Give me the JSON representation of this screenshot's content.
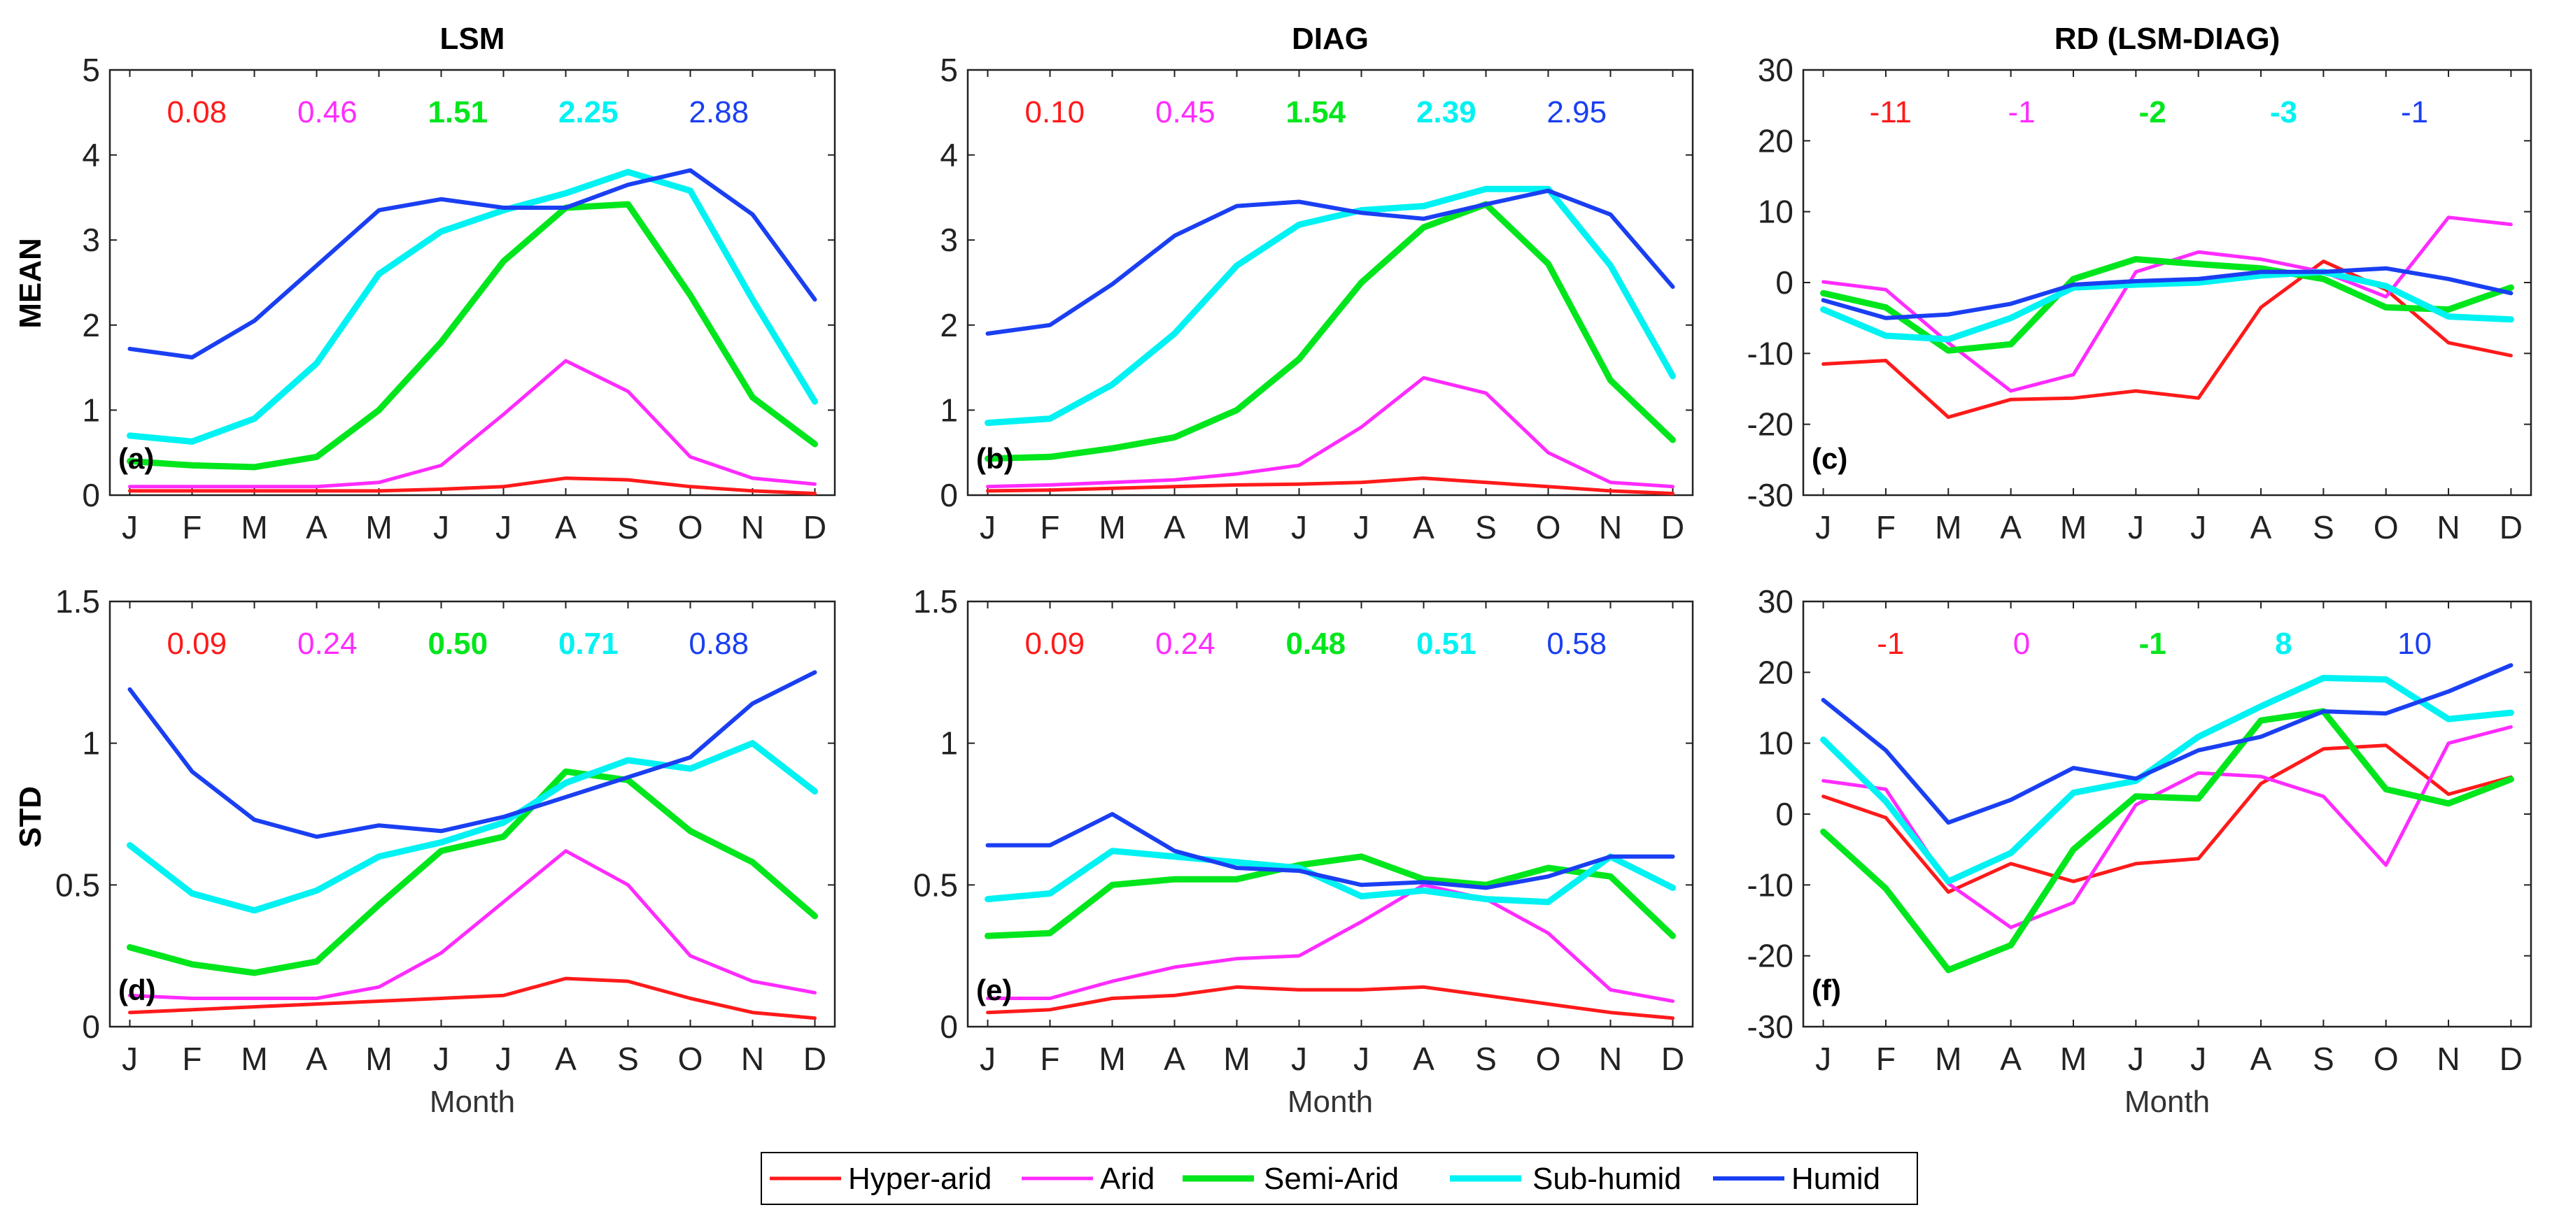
{
  "legend": [
    {
      "name": "Hyper-arid",
      "color": "#ff1a1a",
      "width": 5
    },
    {
      "name": "Arid",
      "color": "#ff2bff",
      "width": 5
    },
    {
      "name": "Semi-Arid",
      "color": "#00e61c",
      "width": 9
    },
    {
      "name": "Sub-humid",
      "color": "#00f2f2",
      "width": 9
    },
    {
      "name": "Humid",
      "color": "#1a3ff2",
      "width": 6
    }
  ],
  "row_labels": [
    "MEAN",
    "STD"
  ],
  "xlabel": "Month",
  "chart_data": [
    {
      "type": "line",
      "id": "a",
      "title": "LSM",
      "panel_label": "(a)",
      "categories": [
        "J",
        "F",
        "M",
        "A",
        "M",
        "J",
        "J",
        "A",
        "S",
        "O",
        "N",
        "D"
      ],
      "ylim": [
        0,
        5
      ],
      "yticks": [
        "0",
        "1",
        "2",
        "3",
        "4",
        "5"
      ],
      "ytick_values": [
        0,
        1,
        2,
        3,
        4,
        5
      ],
      "xlabel": "",
      "summary": [
        "0.08",
        "0.46",
        "1.51",
        "2.25",
        "2.88"
      ],
      "series": [
        {
          "name": "Hyper-arid",
          "values": [
            0.05,
            0.05,
            0.05,
            0.05,
            0.05,
            0.07,
            0.1,
            0.2,
            0.18,
            0.1,
            0.05,
            0.02
          ]
        },
        {
          "name": "Arid",
          "values": [
            0.1,
            0.1,
            0.1,
            0.1,
            0.15,
            0.35,
            0.95,
            1.58,
            1.22,
            0.45,
            0.2,
            0.13
          ]
        },
        {
          "name": "Semi-Arid",
          "values": [
            0.4,
            0.35,
            0.33,
            0.45,
            1.0,
            1.8,
            2.75,
            3.38,
            3.42,
            2.35,
            1.15,
            0.6
          ]
        },
        {
          "name": "Sub-humid",
          "values": [
            0.7,
            0.63,
            0.9,
            1.55,
            2.6,
            3.1,
            3.35,
            3.55,
            3.8,
            3.58,
            2.3,
            1.1
          ]
        },
        {
          "name": "Humid",
          "values": [
            1.72,
            1.62,
            2.05,
            2.7,
            3.35,
            3.48,
            3.38,
            3.38,
            3.65,
            3.82,
            3.3,
            2.3
          ]
        }
      ]
    },
    {
      "type": "line",
      "id": "b",
      "title": "DIAG",
      "panel_label": "(b)",
      "categories": [
        "J",
        "F",
        "M",
        "A",
        "M",
        "J",
        "J",
        "A",
        "S",
        "O",
        "N",
        "D"
      ],
      "ylim": [
        0,
        5
      ],
      "yticks": [
        "0",
        "1",
        "2",
        "3",
        "4",
        "5"
      ],
      "ytick_values": [
        0,
        1,
        2,
        3,
        4,
        5
      ],
      "xlabel": "",
      "summary": [
        "0.10",
        "0.45",
        "1.54",
        "2.39",
        "2.95"
      ],
      "series": [
        {
          "name": "Hyper-arid",
          "values": [
            0.05,
            0.06,
            0.08,
            0.1,
            0.12,
            0.13,
            0.15,
            0.2,
            0.15,
            0.1,
            0.05,
            0.02
          ]
        },
        {
          "name": "Arid",
          "values": [
            0.1,
            0.12,
            0.15,
            0.18,
            0.25,
            0.35,
            0.8,
            1.38,
            1.2,
            0.5,
            0.15,
            0.1
          ]
        },
        {
          "name": "Semi-Arid",
          "values": [
            0.43,
            0.45,
            0.55,
            0.68,
            1.0,
            1.6,
            2.5,
            3.15,
            3.42,
            2.72,
            1.35,
            0.65
          ]
        },
        {
          "name": "Sub-humid",
          "values": [
            0.85,
            0.9,
            1.3,
            1.9,
            2.7,
            3.18,
            3.35,
            3.4,
            3.6,
            3.6,
            2.7,
            1.4
          ]
        },
        {
          "name": "Humid",
          "values": [
            1.9,
            2.0,
            2.48,
            3.05,
            3.4,
            3.45,
            3.32,
            3.25,
            3.42,
            3.58,
            3.3,
            2.45
          ]
        }
      ]
    },
    {
      "type": "line",
      "id": "c",
      "title": "RD (LSM-DIAG)",
      "panel_label": "(c)",
      "categories": [
        "J",
        "F",
        "M",
        "A",
        "M",
        "J",
        "J",
        "A",
        "S",
        "O",
        "N",
        "D"
      ],
      "ylim": [
        -30,
        30
      ],
      "yticks": [
        "-30",
        "-20",
        "-10",
        "0",
        "10",
        "20",
        "30"
      ],
      "ytick_values": [
        -30,
        -20,
        -10,
        0,
        10,
        20,
        30
      ],
      "xlabel": "",
      "summary": [
        "-11",
        "-1",
        "-2",
        "-3",
        "-1"
      ],
      "series": [
        {
          "name": "Hyper-arid",
          "values": [
            -11.5,
            -11,
            -19,
            -16.5,
            -16.3,
            -15.3,
            -16.3,
            -3.5,
            3,
            -1,
            -8.5,
            -10.3
          ]
        },
        {
          "name": "Arid",
          "values": [
            0.1,
            -1,
            -8.5,
            -15.3,
            -13,
            1.5,
            4.3,
            3.3,
            1.5,
            -2,
            9.2,
            8.2
          ]
        },
        {
          "name": "Semi-Arid",
          "values": [
            -1.5,
            -3.5,
            -9.6,
            -8.7,
            0.5,
            3.3,
            2.6,
            2,
            0.5,
            -3.5,
            -3.8,
            -0.7
          ]
        },
        {
          "name": "Sub-humid",
          "values": [
            -3.8,
            -7.5,
            -8,
            -5,
            -0.7,
            -0.3,
            0,
            1,
            1.5,
            -0.5,
            -4.8,
            -5.2
          ]
        },
        {
          "name": "Humid",
          "values": [
            -2.5,
            -5,
            -4.5,
            -3,
            -0.3,
            0.2,
            0.5,
            1.5,
            1.5,
            2,
            0.5,
            -1.5
          ]
        }
      ]
    },
    {
      "type": "line",
      "id": "d",
      "title": "",
      "panel_label": "(d)",
      "categories": [
        "J",
        "F",
        "M",
        "A",
        "M",
        "J",
        "J",
        "A",
        "S",
        "O",
        "N",
        "D"
      ],
      "ylim": [
        0,
        1.5
      ],
      "yticks": [
        "0",
        "0.5",
        "1",
        "1.5"
      ],
      "ytick_values": [
        0,
        0.5,
        1,
        1.5
      ],
      "xlabel": "Month",
      "summary": [
        "0.09",
        "0.24",
        "0.50",
        "0.71",
        "0.88"
      ],
      "series": [
        {
          "name": "Hyper-arid",
          "values": [
            0.05,
            0.06,
            0.07,
            0.08,
            0.09,
            0.1,
            0.11,
            0.17,
            0.16,
            0.1,
            0.05,
            0.03
          ]
        },
        {
          "name": "Arid",
          "values": [
            0.11,
            0.1,
            0.1,
            0.1,
            0.14,
            0.26,
            0.44,
            0.62,
            0.5,
            0.25,
            0.16,
            0.12
          ]
        },
        {
          "name": "Semi-Arid",
          "values": [
            0.28,
            0.22,
            0.19,
            0.23,
            0.43,
            0.62,
            0.67,
            0.9,
            0.87,
            0.69,
            0.58,
            0.39
          ]
        },
        {
          "name": "Sub-humid",
          "values": [
            0.64,
            0.47,
            0.41,
            0.48,
            0.6,
            0.65,
            0.72,
            0.86,
            0.94,
            0.91,
            1.0,
            0.83
          ]
        },
        {
          "name": "Humid",
          "values": [
            1.19,
            0.9,
            0.73,
            0.67,
            0.71,
            0.69,
            0.74,
            0.81,
            0.88,
            0.95,
            1.14,
            1.25
          ]
        }
      ]
    },
    {
      "type": "line",
      "id": "e",
      "title": "",
      "panel_label": "(e)",
      "categories": [
        "J",
        "F",
        "M",
        "A",
        "M",
        "J",
        "J",
        "A",
        "S",
        "O",
        "N",
        "D"
      ],
      "ylim": [
        0,
        1.5
      ],
      "yticks": [
        "0",
        "0.5",
        "1",
        "1.5"
      ],
      "ytick_values": [
        0,
        0.5,
        1,
        1.5
      ],
      "xlabel": "Month",
      "summary": [
        "0.09",
        "0.24",
        "0.48",
        "0.51",
        "0.58"
      ],
      "series": [
        {
          "name": "Hyper-arid",
          "values": [
            0.05,
            0.06,
            0.1,
            0.11,
            0.14,
            0.13,
            0.13,
            0.14,
            0.11,
            0.08,
            0.05,
            0.03
          ]
        },
        {
          "name": "Arid",
          "values": [
            0.1,
            0.1,
            0.16,
            0.21,
            0.24,
            0.25,
            0.37,
            0.5,
            0.45,
            0.33,
            0.13,
            0.09
          ]
        },
        {
          "name": "Semi-Arid",
          "values": [
            0.32,
            0.33,
            0.5,
            0.52,
            0.52,
            0.57,
            0.6,
            0.52,
            0.5,
            0.56,
            0.53,
            0.32
          ]
        },
        {
          "name": "Sub-humid",
          "values": [
            0.45,
            0.47,
            0.62,
            0.6,
            0.58,
            0.56,
            0.46,
            0.48,
            0.45,
            0.44,
            0.6,
            0.49
          ]
        },
        {
          "name": "Humid",
          "values": [
            0.64,
            0.64,
            0.75,
            0.62,
            0.56,
            0.55,
            0.5,
            0.51,
            0.49,
            0.53,
            0.6,
            0.6
          ]
        }
      ]
    },
    {
      "type": "line",
      "id": "f",
      "title": "",
      "panel_label": "(f)",
      "categories": [
        "J",
        "F",
        "M",
        "A",
        "M",
        "J",
        "J",
        "A",
        "S",
        "O",
        "N",
        "D"
      ],
      "ylim": [
        -30,
        30
      ],
      "yticks": [
        "-30",
        "-20",
        "-10",
        "0",
        "10",
        "20",
        "30"
      ],
      "ytick_values": [
        -30,
        -20,
        -10,
        0,
        10,
        20,
        30
      ],
      "xlabel": "Month",
      "summary": [
        "-1",
        "0",
        "-1",
        "8",
        "10"
      ],
      "series": [
        {
          "name": "Hyper-arid",
          "values": [
            2.5,
            -0.5,
            -11,
            -7,
            -9.5,
            -7,
            -6.3,
            4.3,
            9.2,
            9.7,
            2.8,
            5.2
          ]
        },
        {
          "name": "Arid",
          "values": [
            4.7,
            3.5,
            -9.8,
            -16,
            -12.5,
            1.3,
            5.8,
            5.3,
            2.5,
            -7.2,
            10,
            12.3
          ]
        },
        {
          "name": "Semi-Arid",
          "values": [
            -2.5,
            -10.5,
            -22,
            -18.5,
            -5,
            2.5,
            2.2,
            13.2,
            14.5,
            3.5,
            1.5,
            4.9
          ]
        },
        {
          "name": "Sub-humid",
          "values": [
            10.5,
            1.8,
            -9.5,
            -5.5,
            3,
            4.7,
            10.9,
            15.2,
            19.2,
            19,
            13.4,
            14.3
          ]
        },
        {
          "name": "Humid",
          "values": [
            16.1,
            9,
            -1.2,
            2,
            6.5,
            5,
            9,
            10.9,
            14.5,
            14.2,
            17.3,
            21
          ]
        }
      ]
    }
  ]
}
